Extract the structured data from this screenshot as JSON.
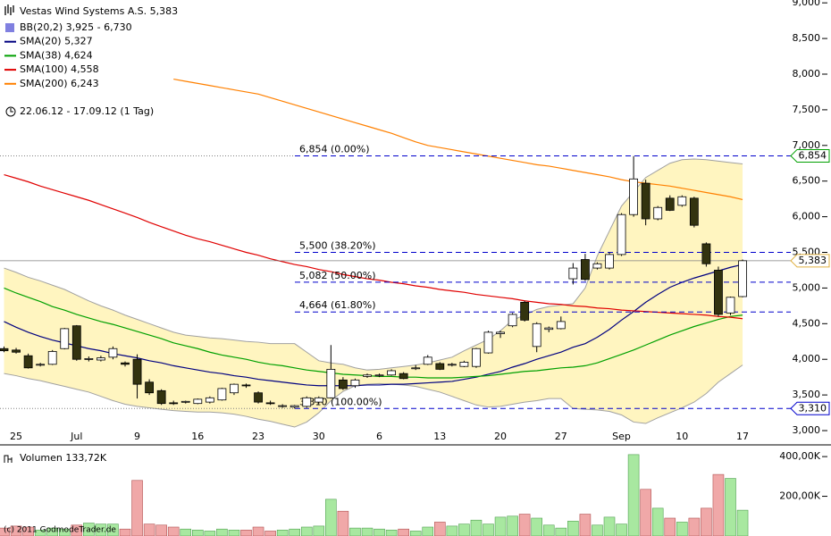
{
  "chart_data": {
    "type": "candlestick",
    "title": "Vestas Wind Systems A.S. 5,383",
    "period": "22.06.12 - 17.09.12 (1 Tag)",
    "copyright": "(c) 2011 GodmodeTrader.de",
    "categories": [
      null,
      "25",
      null,
      null,
      null,
      null,
      "Jul",
      null,
      null,
      null,
      null,
      "9",
      null,
      null,
      null,
      null,
      "16",
      null,
      null,
      null,
      null,
      "23",
      null,
      null,
      null,
      null,
      "30",
      null,
      null,
      null,
      null,
      "6",
      null,
      null,
      null,
      null,
      "13",
      null,
      null,
      null,
      null,
      "20",
      null,
      null,
      null,
      null,
      "27",
      null,
      null,
      null,
      null,
      "Sep",
      null,
      null,
      null,
      null,
      "10",
      null,
      null,
      null,
      null,
      "17"
    ],
    "candles": {
      "up_color": "#ffffff",
      "down_color": "#33330f",
      "open": [
        4.15,
        4.13,
        4.05,
        3.92,
        3.93,
        4.15,
        4.47,
        4.0,
        3.99,
        4.03,
        3.95,
        4.0,
        3.68,
        3.56,
        3.39,
        3.4,
        3.38,
        3.4,
        3.43,
        3.53,
        3.64,
        3.53,
        3.39,
        3.34,
        3.33,
        3.34,
        3.4,
        3.46,
        3.71,
        3.63,
        3.76,
        3.77,
        3.78,
        3.8,
        3.87,
        3.93,
        3.94,
        3.92,
        3.9,
        3.9,
        4.09,
        4.36,
        4.47,
        4.8,
        4.18,
        4.42,
        4.43,
        5.13,
        5.4,
        5.28,
        5.28,
        5.47,
        6.03,
        6.47,
        5.97,
        6.26,
        6.16,
        6.26,
        5.62,
        5.25,
        4.65,
        4.88
      ],
      "high": [
        4.18,
        4.16,
        4.08,
        3.95,
        4.13,
        4.44,
        4.48,
        4.04,
        4.05,
        4.18,
        3.97,
        4.07,
        3.72,
        3.58,
        3.42,
        3.42,
        3.45,
        3.48,
        3.6,
        3.66,
        3.66,
        3.55,
        3.42,
        3.37,
        3.36,
        3.48,
        3.48,
        4.2,
        3.75,
        3.73,
        3.8,
        3.8,
        3.86,
        3.82,
        3.92,
        4.06,
        3.96,
        3.95,
        3.98,
        4.16,
        4.4,
        4.4,
        4.65,
        4.82,
        4.52,
        4.46,
        4.6,
        5.35,
        5.48,
        5.36,
        5.5,
        6.05,
        6.85,
        6.52,
        6.15,
        6.3,
        6.3,
        6.28,
        5.64,
        5.3,
        4.88,
        5.4
      ],
      "low": [
        4.1,
        4.08,
        3.87,
        3.9,
        3.92,
        4.14,
        3.98,
        3.97,
        3.97,
        4.0,
        3.9,
        3.45,
        3.5,
        3.36,
        3.36,
        3.38,
        3.37,
        3.38,
        3.42,
        3.5,
        3.6,
        3.38,
        3.36,
        3.32,
        3.31,
        3.32,
        3.38,
        3.45,
        3.57,
        3.6,
        3.74,
        3.75,
        3.77,
        3.72,
        3.85,
        3.92,
        3.85,
        3.9,
        3.89,
        3.88,
        4.08,
        4.3,
        4.45,
        4.53,
        4.1,
        4.38,
        4.42,
        5.05,
        5.1,
        5.26,
        5.26,
        5.45,
        6.0,
        5.88,
        5.95,
        6.08,
        6.14,
        5.85,
        5.3,
        4.6,
        4.62,
        4.87
      ],
      "close": [
        4.12,
        4.1,
        3.88,
        3.93,
        4.11,
        4.43,
        4.0,
        4.01,
        4.02,
        4.15,
        3.93,
        3.65,
        3.53,
        3.38,
        3.38,
        3.41,
        3.44,
        3.46,
        3.59,
        3.65,
        3.63,
        3.4,
        3.38,
        3.35,
        3.35,
        3.46,
        3.46,
        3.86,
        3.59,
        3.71,
        3.78,
        3.78,
        3.84,
        3.73,
        3.88,
        4.03,
        3.86,
        3.93,
        3.96,
        4.15,
        4.38,
        4.38,
        4.63,
        4.55,
        4.5,
        4.44,
        4.53,
        5.28,
        5.12,
        5.34,
        5.47,
        6.03,
        6.53,
        5.97,
        6.13,
        6.09,
        6.28,
        5.88,
        5.34,
        4.63,
        4.87,
        5.383
      ]
    },
    "bands": {
      "name": "BB(20,2) 3,925 - 6,730",
      "color": "#8080e0",
      "fill": "#fff5c0",
      "line_color": "#a0a0a0",
      "upper": [
        5.28,
        5.22,
        5.15,
        5.1,
        5.04,
        4.98,
        4.9,
        4.82,
        4.75,
        4.69,
        4.62,
        4.56,
        4.5,
        4.44,
        4.38,
        4.34,
        4.32,
        4.3,
        4.29,
        4.27,
        4.25,
        4.24,
        4.22,
        4.22,
        4.22,
        4.1,
        3.98,
        3.95,
        3.93,
        3.88,
        3.85,
        3.86,
        3.88,
        3.9,
        3.92,
        3.95,
        3.99,
        4.03,
        4.12,
        4.2,
        4.28,
        4.4,
        4.55,
        4.62,
        4.7,
        4.74,
        4.76,
        4.78,
        5.0,
        5.45,
        5.8,
        6.15,
        6.35,
        6.55,
        6.65,
        6.75,
        6.8,
        6.81,
        6.8,
        6.78,
        6.76,
        6.74
      ],
      "lower": [
        3.8,
        3.77,
        3.73,
        3.7,
        3.66,
        3.62,
        3.58,
        3.54,
        3.48,
        3.42,
        3.37,
        3.34,
        3.32,
        3.3,
        3.28,
        3.27,
        3.26,
        3.26,
        3.25,
        3.23,
        3.2,
        3.16,
        3.13,
        3.09,
        3.05,
        3.12,
        3.25,
        3.42,
        3.55,
        3.63,
        3.65,
        3.66,
        3.65,
        3.64,
        3.62,
        3.58,
        3.54,
        3.48,
        3.42,
        3.36,
        3.33,
        3.34,
        3.37,
        3.4,
        3.42,
        3.45,
        3.45,
        3.31,
        3.3,
        3.29,
        3.27,
        3.22,
        3.12,
        3.1,
        3.18,
        3.25,
        3.32,
        3.4,
        3.52,
        3.68,
        3.8,
        3.92
      ]
    },
    "series": [
      {
        "name": "SMA(20) 5,327",
        "color": "#000080",
        "values": [
          4.53,
          4.45,
          4.38,
          4.32,
          4.27,
          4.23,
          4.19,
          4.15,
          4.12,
          4.08,
          4.05,
          4.02,
          3.98,
          3.95,
          3.91,
          3.88,
          3.85,
          3.82,
          3.8,
          3.77,
          3.75,
          3.72,
          3.7,
          3.68,
          3.66,
          3.64,
          3.63,
          3.63,
          3.63,
          3.63,
          3.64,
          3.64,
          3.65,
          3.65,
          3.66,
          3.67,
          3.68,
          3.69,
          3.72,
          3.75,
          3.79,
          3.83,
          3.89,
          3.94,
          4.0,
          4.05,
          4.1,
          4.17,
          4.22,
          4.31,
          4.42,
          4.55,
          4.67,
          4.8,
          4.91,
          5.01,
          5.08,
          5.14,
          5.19,
          5.24,
          5.29,
          5.33
        ]
      },
      {
        "name": "SMA(38) 4,624",
        "color": "#00a000",
        "values": [
          5.0,
          4.93,
          4.87,
          4.81,
          4.74,
          4.69,
          4.63,
          4.58,
          4.53,
          4.49,
          4.44,
          4.39,
          4.34,
          4.29,
          4.23,
          4.19,
          4.15,
          4.1,
          4.06,
          4.03,
          4.0,
          3.96,
          3.93,
          3.91,
          3.88,
          3.85,
          3.83,
          3.81,
          3.79,
          3.78,
          3.77,
          3.76,
          3.76,
          3.75,
          3.75,
          3.74,
          3.74,
          3.74,
          3.75,
          3.76,
          3.77,
          3.79,
          3.81,
          3.83,
          3.84,
          3.86,
          3.88,
          3.89,
          3.91,
          3.95,
          4.01,
          4.07,
          4.13,
          4.2,
          4.27,
          4.34,
          4.4,
          4.46,
          4.51,
          4.56,
          4.6,
          4.62
        ]
      },
      {
        "name": "SMA(100) 4,558",
        "color": "#e00000",
        "values": [
          6.59,
          6.54,
          6.49,
          6.43,
          6.38,
          6.33,
          6.28,
          6.23,
          6.17,
          6.11,
          6.05,
          5.99,
          5.92,
          5.86,
          5.8,
          5.74,
          5.69,
          5.65,
          5.6,
          5.55,
          5.5,
          5.46,
          5.41,
          5.37,
          5.33,
          5.3,
          5.26,
          5.23,
          5.19,
          5.16,
          5.13,
          5.11,
          5.08,
          5.06,
          5.03,
          5.01,
          4.98,
          4.96,
          4.94,
          4.91,
          4.89,
          4.87,
          4.85,
          4.82,
          4.8,
          4.78,
          4.77,
          4.75,
          4.74,
          4.72,
          4.71,
          4.69,
          4.68,
          4.67,
          4.66,
          4.65,
          4.64,
          4.63,
          4.62,
          4.6,
          4.59,
          4.57
        ]
      },
      {
        "name": "SMA(200) 6,243",
        "color": "#ff8000",
        "values": [
          null,
          null,
          null,
          null,
          null,
          null,
          null,
          null,
          null,
          null,
          null,
          null,
          null,
          null,
          7.93,
          7.9,
          7.87,
          7.84,
          7.81,
          7.78,
          7.75,
          7.72,
          7.67,
          7.62,
          7.57,
          7.52,
          7.47,
          7.42,
          7.37,
          7.32,
          7.27,
          7.22,
          7.17,
          7.11,
          7.05,
          7.0,
          6.97,
          6.94,
          6.91,
          6.88,
          6.85,
          6.82,
          6.79,
          6.76,
          6.73,
          6.71,
          6.68,
          6.65,
          6.62,
          6.59,
          6.56,
          6.52,
          6.49,
          6.47,
          6.45,
          6.43,
          6.4,
          6.37,
          6.34,
          6.31,
          6.28,
          6.24
        ]
      }
    ],
    "fib_levels": [
      {
        "value": 6.854,
        "label": "6,854 (0.00%)"
      },
      {
        "value": 5.5,
        "label": "5,500 (38.20%)"
      },
      {
        "value": 5.082,
        "label": "5,082 (50.00%)"
      },
      {
        "value": 4.664,
        "label": "4,664 (61.80%)"
      },
      {
        "value": 3.31,
        "label": "3,310 (100.00%)"
      }
    ],
    "fib_color": "#0000cc",
    "price_markers": [
      {
        "value": 6.854,
        "label": "6,854",
        "color": "#00a000"
      },
      {
        "value": 5.383,
        "label": "5,383",
        "color": "#e0b040",
        "line": "#808080"
      },
      {
        "value": 3.31,
        "label": "3,310",
        "color": "#0000cc"
      }
    ],
    "ylim": [
      2.9,
      9.04
    ],
    "yticks": [
      {
        "value": 3.0,
        "label": "3,000"
      },
      {
        "value": 3.5,
        "label": "3,500"
      },
      {
        "value": 4.0,
        "label": "4,000"
      },
      {
        "value": 4.5,
        "label": "4,500"
      },
      {
        "value": 5.0,
        "label": "5,000"
      },
      {
        "value": 5.5,
        "label": "5,500"
      },
      {
        "value": 6.0,
        "label": "6,000"
      },
      {
        "value": 6.5,
        "label": "6,500"
      },
      {
        "value": 7.0,
        "label": "7,000"
      },
      {
        "value": 7.5,
        "label": "7,500"
      },
      {
        "value": 8.0,
        "label": "8,000"
      },
      {
        "value": 8.5,
        "label": "8,500"
      },
      {
        "value": 9.0,
        "label": "9,000"
      }
    ],
    "volume": {
      "name": "Volumen 133,72K",
      "up_color": "#a8e8a0",
      "down_color": "#f0a8a8",
      "values": [
        40,
        50,
        45,
        30,
        40,
        35,
        55,
        65,
        60,
        60,
        35,
        280,
        60,
        55,
        45,
        35,
        30,
        25,
        35,
        30,
        30,
        45,
        25,
        30,
        35,
        45,
        50,
        185,
        125,
        40,
        40,
        35,
        30,
        35,
        25,
        45,
        70,
        50,
        60,
        80,
        60,
        95,
        100,
        110,
        90,
        55,
        40,
        75,
        110,
        55,
        95,
        60,
        410,
        235,
        140,
        90,
        70,
        90,
        140,
        310,
        290,
        130
      ],
      "ylim": [
        0,
        450
      ],
      "yticks": [
        {
          "value": 200,
          "label": "200,00K"
        },
        {
          "value": 400,
          "label": "400,00K"
        }
      ]
    }
  }
}
